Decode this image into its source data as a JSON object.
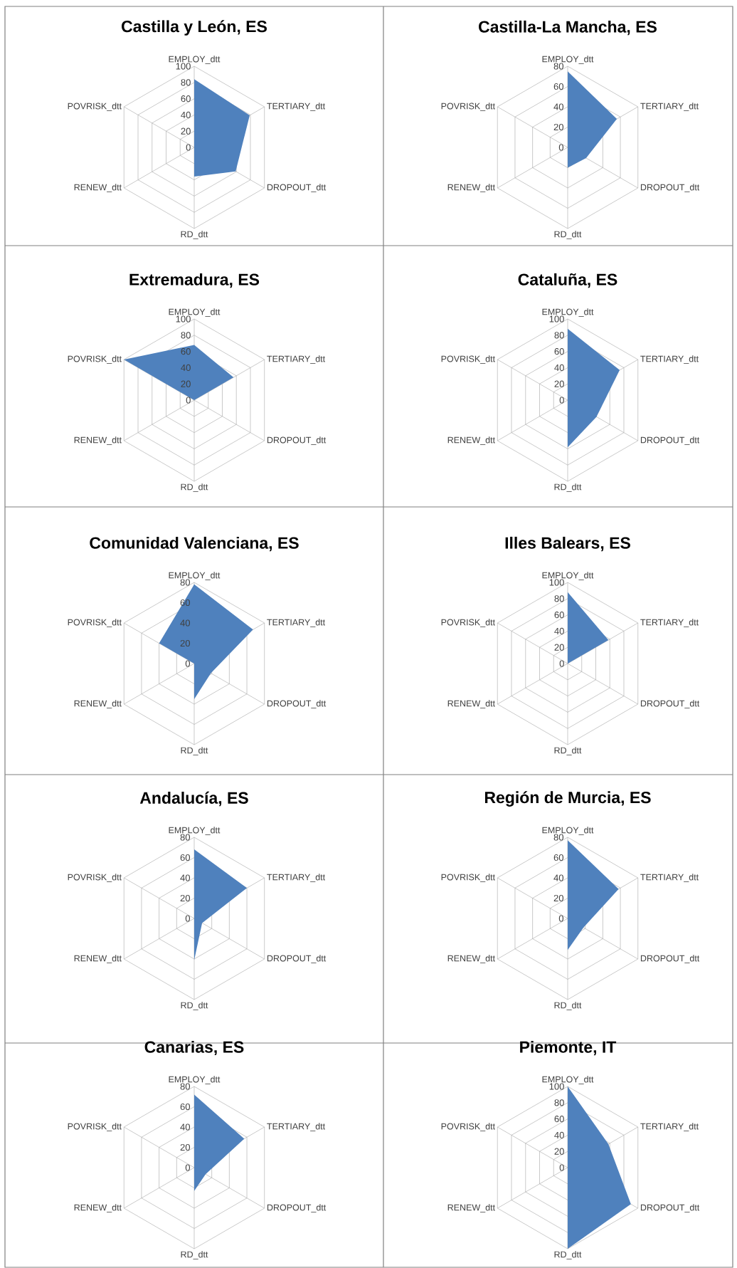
{
  "chart_data": [
    {
      "type": "radar",
      "title": "Castilla y León, ES",
      "categories": [
        "EMPLOY_dtt",
        "TERTIARY_dtt",
        "DROPOUT_dtt",
        "RD_dtt",
        "RENEW_dtt",
        "POVRISK_dtt"
      ],
      "series": [
        {
          "color": "#4f81bd",
          "values": [
            84,
            79,
            59,
            36,
            0,
            0
          ]
        }
      ],
      "ylim": [
        0,
        100
      ],
      "yticks": [
        0,
        20,
        40,
        60,
        80,
        100
      ],
      "grid": true
    },
    {
      "type": "radar",
      "title": "Castilla-La Mancha, ES",
      "categories": [
        "EMPLOY_dtt",
        "TERTIARY_dtt",
        "DROPOUT_dtt",
        "RD_dtt",
        "RENEW_dtt",
        "POVRISK_dtt"
      ],
      "series": [
        {
          "color": "#4f81bd",
          "values": [
            75,
            56,
            21,
            20,
            0,
            0
          ]
        }
      ],
      "ylim": [
        0,
        80
      ],
      "yticks": [
        0,
        20,
        40,
        60,
        80
      ],
      "grid": true
    },
    {
      "type": "radar",
      "title": "Extremadura, ES",
      "categories": [
        "EMPLOY_dtt",
        "TERTIARY_dtt",
        "DROPOUT_dtt",
        "RD_dtt",
        "RENEW_dtt",
        "POVRISK_dtt"
      ],
      "series": [
        {
          "color": "#4f81bd",
          "values": [
            68,
            56,
            0,
            0,
            0,
            100
          ]
        }
      ],
      "ylim": [
        0,
        100
      ],
      "yticks": [
        0,
        20,
        40,
        60,
        80,
        100
      ],
      "grid": true
    },
    {
      "type": "radar",
      "title": "Cataluña, ES",
      "categories": [
        "EMPLOY_dtt",
        "TERTIARY_dtt",
        "DROPOUT_dtt",
        "RD_dtt",
        "RENEW_dtt",
        "POVRISK_dtt"
      ],
      "series": [
        {
          "color": "#4f81bd",
          "values": [
            88,
            74,
            41,
            58,
            0,
            0
          ]
        }
      ],
      "ylim": [
        0,
        100
      ],
      "yticks": [
        0,
        20,
        40,
        60,
        80,
        100
      ],
      "grid": true
    },
    {
      "type": "radar",
      "title": "Comunidad Valenciana, ES",
      "categories": [
        "EMPLOY_dtt",
        "TERTIARY_dtt",
        "DROPOUT_dtt",
        "RD_dtt",
        "RENEW_dtt",
        "POVRISK_dtt"
      ],
      "series": [
        {
          "color": "#4f81bd",
          "values": [
            78,
            67,
            19,
            35,
            0,
            40
          ]
        }
      ],
      "ylim": [
        0,
        80
      ],
      "yticks": [
        0,
        20,
        40,
        60,
        80
      ],
      "grid": true
    },
    {
      "type": "radar",
      "title": "Illes Balears, ES",
      "categories": [
        "EMPLOY_dtt",
        "TERTIARY_dtt",
        "DROPOUT_dtt",
        "RD_dtt",
        "RENEW_dtt",
        "POVRISK_dtt"
      ],
      "series": [
        {
          "color": "#4f81bd",
          "values": [
            88,
            58,
            0,
            0,
            0,
            0
          ]
        }
      ],
      "ylim": [
        0,
        100
      ],
      "yticks": [
        0,
        20,
        40,
        60,
        80,
        100
      ],
      "grid": true
    },
    {
      "type": "radar",
      "title": "Andalucía, ES",
      "categories": [
        "EMPLOY_dtt",
        "TERTIARY_dtt",
        "DROPOUT_dtt",
        "RD_dtt",
        "RENEW_dtt",
        "POVRISK_dtt"
      ],
      "series": [
        {
          "color": "#4f81bd",
          "values": [
            68,
            60,
            9,
            41,
            0,
            0
          ]
        }
      ],
      "ylim": [
        0,
        80
      ],
      "yticks": [
        0,
        20,
        40,
        60,
        80
      ],
      "grid": true
    },
    {
      "type": "radar",
      "title": "Región de Murcia, ES",
      "categories": [
        "EMPLOY_dtt",
        "TERTIARY_dtt",
        "DROPOUT_dtt",
        "RD_dtt",
        "RENEW_dtt",
        "POVRISK_dtt"
      ],
      "series": [
        {
          "color": "#4f81bd",
          "values": [
            77,
            58,
            18,
            31,
            0,
            0
          ]
        }
      ],
      "ylim": [
        0,
        80
      ],
      "yticks": [
        0,
        20,
        40,
        60,
        80
      ],
      "grid": true
    },
    {
      "type": "radar",
      "title": "Canarias, ES",
      "categories": [
        "EMPLOY_dtt",
        "TERTIARY_dtt",
        "DROPOUT_dtt",
        "RD_dtt",
        "RENEW_dtt",
        "POVRISK_dtt"
      ],
      "series": [
        {
          "color": "#4f81bd",
          "values": [
            72,
            57,
            13,
            23,
            0,
            0
          ]
        }
      ],
      "ylim": [
        0,
        80
      ],
      "yticks": [
        0,
        20,
        40,
        60,
        80
      ],
      "grid": true
    },
    {
      "type": "radar",
      "title": "Piemonte, IT",
      "categories": [
        "EMPLOY_dtt",
        "TERTIARY_dtt",
        "DROPOUT_dtt",
        "RD_dtt",
        "RENEW_dtt",
        "POVRISK_dtt"
      ],
      "series": [
        {
          "color": "#4f81bd",
          "values": [
            100,
            58,
            90,
            100,
            0,
            0
          ]
        }
      ],
      "ylim": [
        0,
        100
      ],
      "yticks": [
        0,
        20,
        40,
        60,
        80,
        100
      ],
      "grid": true
    }
  ]
}
